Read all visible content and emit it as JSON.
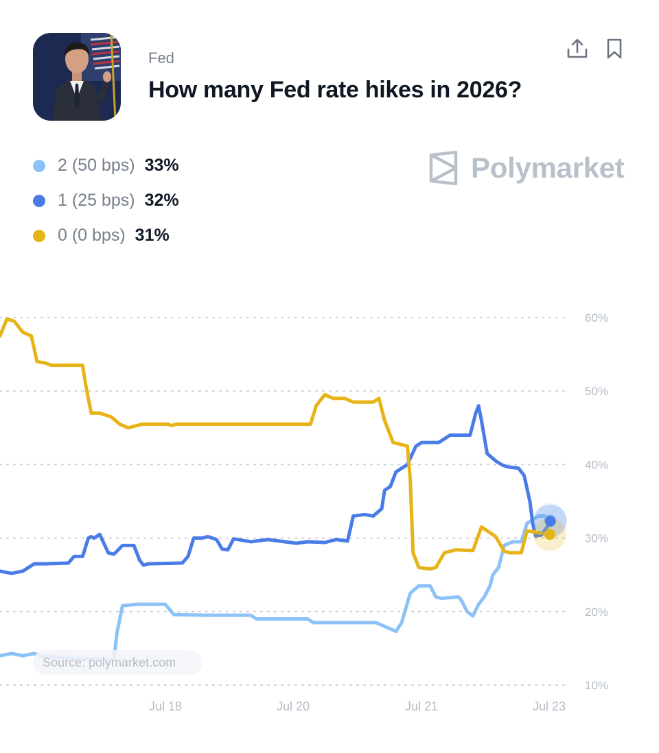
{
  "header": {
    "category": "Fed",
    "title": "How many Fed rate hikes in 2026?",
    "share_icon": "share-upload-icon",
    "bookmark_icon": "bookmark-icon"
  },
  "legend": [
    {
      "label": "2 (50 bps)",
      "value": "33%",
      "color": "#8cc2f7"
    },
    {
      "label": "1 (25 bps)",
      "value": "32%",
      "color": "#4a7ce8"
    },
    {
      "label": "0 (0 bps)",
      "value": "31%",
      "color": "#e6b417"
    }
  ],
  "brand": {
    "name": "Polymarket",
    "icon": "polymarket-logo-icon"
  },
  "source": "Source: polymarket.com",
  "chart_data": {
    "type": "line",
    "x_ticks": [
      "Jul 18",
      "Jul 20",
      "Jul 21",
      "Jul 23"
    ],
    "y_ticks": [
      "60%",
      "50%",
      "40%",
      "30%",
      "20%",
      "10%"
    ],
    "ylim": [
      10,
      60
    ],
    "grid": true,
    "series": [
      {
        "name": "2 (50 bps)",
        "color": "#8cc2f7",
        "points": [
          [
            0,
            14
          ],
          [
            0.02,
            14.3
          ],
          [
            0.04,
            14
          ],
          [
            0.06,
            14.3
          ],
          [
            0.07,
            14
          ],
          [
            0.1,
            13.8
          ],
          [
            0.15,
            13.6
          ],
          [
            0.2,
            13.5
          ],
          [
            0.205,
            17
          ],
          [
            0.215,
            20.8
          ],
          [
            0.24,
            21
          ],
          [
            0.29,
            21
          ],
          [
            0.305,
            19.6
          ],
          [
            0.36,
            19.5
          ],
          [
            0.44,
            19.5
          ],
          [
            0.45,
            19
          ],
          [
            0.54,
            19
          ],
          [
            0.55,
            18.5
          ],
          [
            0.66,
            18.5
          ],
          [
            0.675,
            18
          ],
          [
            0.695,
            17.3
          ],
          [
            0.705,
            18.5
          ],
          [
            0.72,
            22.5
          ],
          [
            0.735,
            23.5
          ],
          [
            0.755,
            23.5
          ],
          [
            0.765,
            22
          ],
          [
            0.775,
            21.8
          ],
          [
            0.805,
            22
          ],
          [
            0.81,
            21.5
          ],
          [
            0.82,
            20
          ],
          [
            0.83,
            19.4
          ],
          [
            0.84,
            21
          ],
          [
            0.85,
            22
          ],
          [
            0.86,
            23.5
          ],
          [
            0.865,
            25
          ],
          [
            0.875,
            26
          ],
          [
            0.885,
            29
          ],
          [
            0.9,
            29.5
          ],
          [
            0.915,
            29.5
          ],
          [
            0.925,
            32
          ],
          [
            0.935,
            32.5
          ],
          [
            0.945,
            33
          ],
          [
            0.955,
            33
          ],
          [
            0.965,
            32.5
          ]
        ]
      },
      {
        "name": "1 (25 bps)",
        "color": "#4a7ce8",
        "points": [
          [
            0,
            25.5
          ],
          [
            0.02,
            25.2
          ],
          [
            0.04,
            25.5
          ],
          [
            0.05,
            26
          ],
          [
            0.06,
            26.5
          ],
          [
            0.08,
            26.5
          ],
          [
            0.12,
            26.6
          ],
          [
            0.13,
            27.5
          ],
          [
            0.145,
            27.5
          ],
          [
            0.155,
            30
          ],
          [
            0.16,
            30.2
          ],
          [
            0.165,
            30
          ],
          [
            0.175,
            30.5
          ],
          [
            0.19,
            28
          ],
          [
            0.2,
            27.8
          ],
          [
            0.215,
            29
          ],
          [
            0.235,
            29
          ],
          [
            0.245,
            27
          ],
          [
            0.252,
            26.3
          ],
          [
            0.26,
            26.5
          ],
          [
            0.32,
            26.6
          ],
          [
            0.33,
            27.5
          ],
          [
            0.34,
            30
          ],
          [
            0.355,
            30
          ],
          [
            0.365,
            30.2
          ],
          [
            0.38,
            29.8
          ],
          [
            0.39,
            28.5
          ],
          [
            0.4,
            28.4
          ],
          [
            0.41,
            29.9
          ],
          [
            0.44,
            29.5
          ],
          [
            0.47,
            29.8
          ],
          [
            0.52,
            29.3
          ],
          [
            0.54,
            29.5
          ],
          [
            0.57,
            29.4
          ],
          [
            0.59,
            29.8
          ],
          [
            0.61,
            29.6
          ],
          [
            0.62,
            33
          ],
          [
            0.64,
            33.2
          ],
          [
            0.655,
            33
          ],
          [
            0.67,
            34
          ],
          [
            0.675,
            36.5
          ],
          [
            0.685,
            37
          ],
          [
            0.695,
            39
          ],
          [
            0.705,
            39.5
          ],
          [
            0.715,
            40
          ],
          [
            0.73,
            42.5
          ],
          [
            0.74,
            43
          ],
          [
            0.77,
            43
          ],
          [
            0.79,
            44
          ],
          [
            0.825,
            44
          ],
          [
            0.835,
            47
          ],
          [
            0.84,
            48
          ],
          [
            0.845,
            46
          ],
          [
            0.855,
            41.5
          ],
          [
            0.87,
            40.5
          ],
          [
            0.88,
            40
          ],
          [
            0.89,
            39.7
          ],
          [
            0.91,
            39.5
          ],
          [
            0.92,
            38.5
          ],
          [
            0.93,
            35
          ],
          [
            0.935,
            32
          ],
          [
            0.94,
            30.3
          ],
          [
            0.95,
            30.4
          ],
          [
            0.96,
            31.5
          ],
          [
            0.966,
            32.3
          ]
        ]
      },
      {
        "name": "0 (0 bps)",
        "color": "#e6b417",
        "points": [
          [
            0,
            57.5
          ],
          [
            0.012,
            59.8
          ],
          [
            0.025,
            59.5
          ],
          [
            0.04,
            58
          ],
          [
            0.055,
            57.5
          ],
          [
            0.065,
            54
          ],
          [
            0.08,
            53.8
          ],
          [
            0.09,
            53.5
          ],
          [
            0.145,
            53.5
          ],
          [
            0.15,
            51
          ],
          [
            0.16,
            47
          ],
          [
            0.175,
            47
          ],
          [
            0.195,
            46.5
          ],
          [
            0.21,
            45.5
          ],
          [
            0.225,
            45
          ],
          [
            0.25,
            45.5
          ],
          [
            0.295,
            45.5
          ],
          [
            0.3,
            45.3
          ],
          [
            0.31,
            45.5
          ],
          [
            0.545,
            45.5
          ],
          [
            0.555,
            48
          ],
          [
            0.57,
            49.5
          ],
          [
            0.585,
            49
          ],
          [
            0.605,
            49
          ],
          [
            0.62,
            48.5
          ],
          [
            0.655,
            48.5
          ],
          [
            0.665,
            49
          ],
          [
            0.675,
            46
          ],
          [
            0.69,
            43
          ],
          [
            0.7,
            42.8
          ],
          [
            0.715,
            42.5
          ],
          [
            0.72,
            38
          ],
          [
            0.725,
            28
          ],
          [
            0.735,
            26
          ],
          [
            0.755,
            25.8
          ],
          [
            0.765,
            26
          ],
          [
            0.78,
            28
          ],
          [
            0.8,
            28.4
          ],
          [
            0.83,
            28.3
          ],
          [
            0.845,
            31.5
          ],
          [
            0.855,
            31
          ],
          [
            0.87,
            30.2
          ],
          [
            0.885,
            28.2
          ],
          [
            0.895,
            28
          ],
          [
            0.915,
            28
          ],
          [
            0.925,
            31
          ],
          [
            0.94,
            30.8
          ],
          [
            0.955,
            30.6
          ],
          [
            0.965,
            30.5
          ]
        ]
      }
    ]
  }
}
